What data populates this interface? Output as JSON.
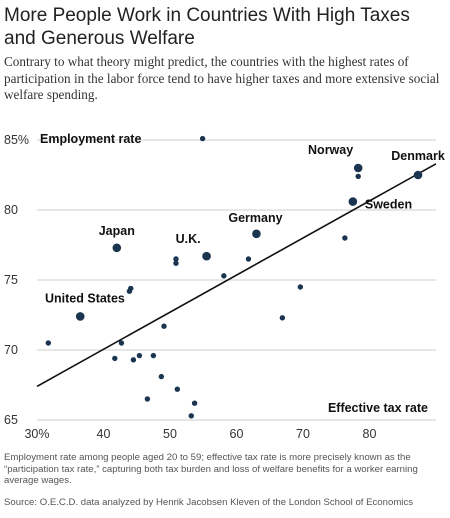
{
  "header": {
    "title": "More People Work in Countries With High Taxes and Generous Welfare",
    "subtitle": "Contrary to what theory might predict, the countries with the highest rates of participation in the labor force tend to have higher taxes and more extensive social welfare spending."
  },
  "footer": {
    "footnote": "Employment rate among people aged 20 to 59; effective tax rate is more precisely known as the “participation tax rate,” capturing both tax burden and loss of welfare benefits for a worker earning average wages.",
    "source": "Source: O.E.C.D. data analyzed by Henrik Jacobsen Kleven of the London School of Economics"
  },
  "colors": {
    "dot": "#1b3550",
    "line": "#111111",
    "grid": "#cccccc"
  },
  "chart_data": {
    "type": "scatter",
    "xlabel": "Effective tax rate",
    "ylabel": "Employment rate",
    "xlim": [
      30,
      90
    ],
    "ylim": [
      65,
      86
    ],
    "x_ticks": [
      {
        "value": 30,
        "label": "30%"
      },
      {
        "value": 40,
        "label": "40"
      },
      {
        "value": 50,
        "label": "50"
      },
      {
        "value": 60,
        "label": "60"
      },
      {
        "value": 70,
        "label": "70"
      },
      {
        "value": 80,
        "label": "80"
      }
    ],
    "y_ticks": [
      {
        "value": 65,
        "label": "65"
      },
      {
        "value": 70,
        "label": "70"
      },
      {
        "value": 75,
        "label": "75"
      },
      {
        "value": 80,
        "label": "80"
      },
      {
        "value": 85,
        "label": "85%"
      }
    ],
    "grid": true,
    "trendline": {
      "x": [
        30,
        90
      ],
      "y": [
        67.4,
        83.3
      ]
    },
    "points": [
      {
        "x": 36.5,
        "y": 72.4,
        "label": "United States",
        "highlight": true
      },
      {
        "x": 42,
        "y": 77.3,
        "label": "Japan",
        "highlight": true
      },
      {
        "x": 55.5,
        "y": 76.7,
        "label": "U.K.",
        "highlight": true
      },
      {
        "x": 63,
        "y": 78.3,
        "label": "Germany",
        "highlight": true
      },
      {
        "x": 77.5,
        "y": 80.6,
        "label": "Sweden",
        "highlight": true
      },
      {
        "x": 78.3,
        "y": 83.0,
        "label": "Norway",
        "highlight": true
      },
      {
        "x": 87.3,
        "y": 82.5,
        "label": "Denmark",
        "highlight": true
      },
      {
        "x": 54.9,
        "y": 85.1
      },
      {
        "x": 78.3,
        "y": 82.4
      },
      {
        "x": 76.3,
        "y": 78.0
      },
      {
        "x": 50.9,
        "y": 76.5
      },
      {
        "x": 50.9,
        "y": 76.2
      },
      {
        "x": 61.8,
        "y": 76.5
      },
      {
        "x": 58.1,
        "y": 75.3
      },
      {
        "x": 43.9,
        "y": 74.2
      },
      {
        "x": 44.1,
        "y": 74.4
      },
      {
        "x": 69.6,
        "y": 74.5
      },
      {
        "x": 66.9,
        "y": 72.3
      },
      {
        "x": 31.7,
        "y": 70.5
      },
      {
        "x": 49.1,
        "y": 71.7
      },
      {
        "x": 42.7,
        "y": 70.5
      },
      {
        "x": 41.7,
        "y": 69.4
      },
      {
        "x": 44.5,
        "y": 69.3
      },
      {
        "x": 45.4,
        "y": 69.6
      },
      {
        "x": 47.5,
        "y": 69.6
      },
      {
        "x": 48.7,
        "y": 68.1
      },
      {
        "x": 46.6,
        "y": 66.5
      },
      {
        "x": 51.1,
        "y": 67.2
      },
      {
        "x": 53.7,
        "y": 66.2
      },
      {
        "x": 53.2,
        "y": 65.3
      }
    ]
  }
}
